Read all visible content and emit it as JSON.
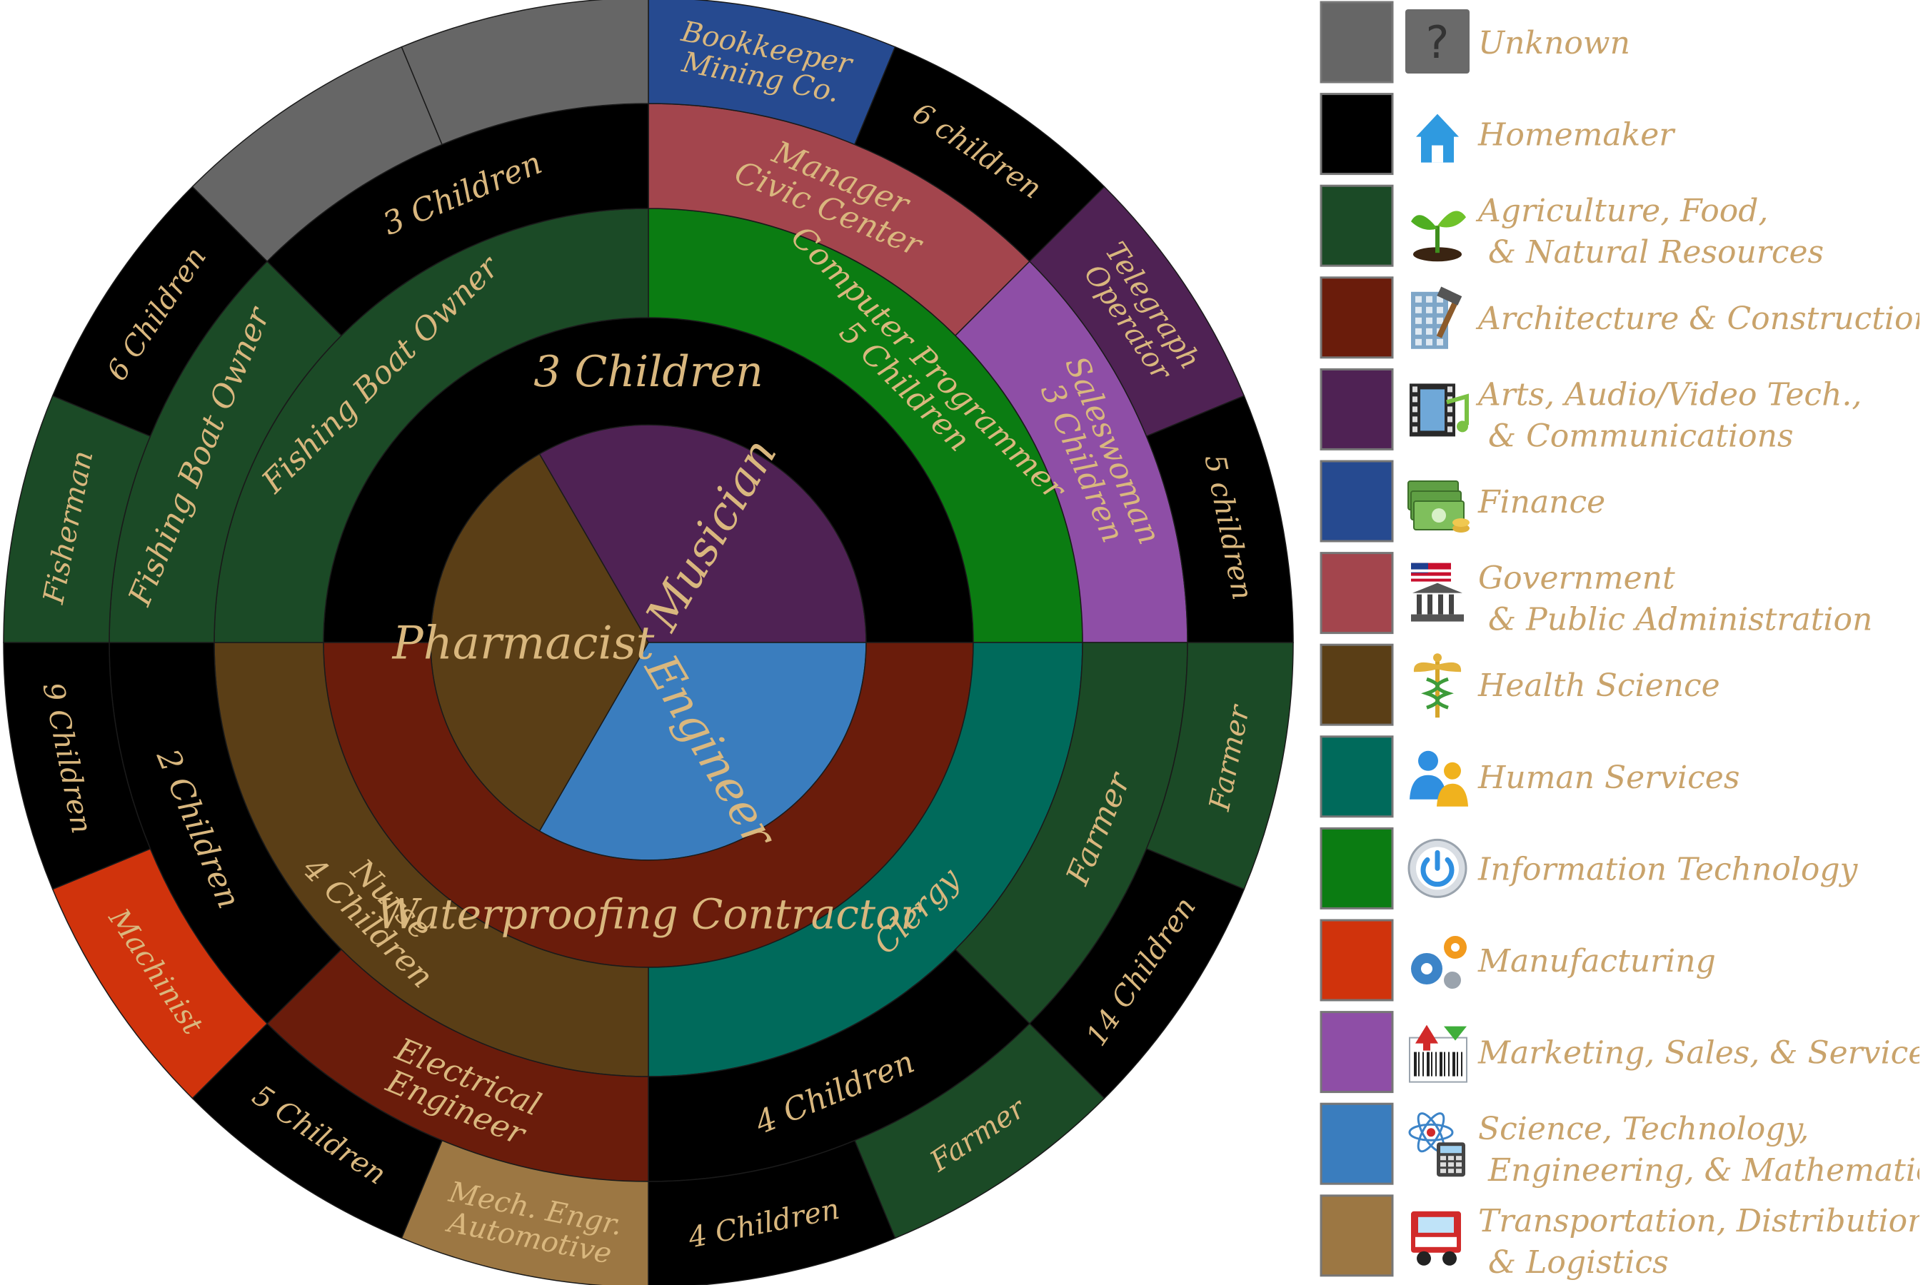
{
  "colors": {
    "label": "#d9b77e",
    "unknown": "#666666",
    "homemaker": "#000000",
    "agriculture": "#1b4a26",
    "architecture": "#6a1c0b",
    "arts": "#4f2254",
    "finance": "#264a90",
    "government": "#a3454d",
    "health": "#5a3e16",
    "human": "#006a5b",
    "it": "#0b7c12",
    "manufacturing": "#d0330c",
    "marketing": "#8e4ea6",
    "stem": "#3a7dbe",
    "transport": "#9c7743"
  },
  "chart_data": {
    "type": "sunburst",
    "rings": [
      {
        "level": 1,
        "segments": [
          {
            "label": "Musician",
            "category": "arts",
            "start": 330,
            "end": 90
          },
          {
            "label": "Engineer",
            "category": "stem",
            "start": 90,
            "end": 210
          },
          {
            "label": "Pharmacist",
            "category": "health",
            "start": 210,
            "end": 330
          }
        ]
      },
      {
        "level": 2,
        "segments": [
          {
            "label": "3 Children",
            "category": "homemaker",
            "start": 270,
            "end": 90
          },
          {
            "label": "Waterproofing Contractor",
            "category": "architecture",
            "start": 90,
            "end": 270
          }
        ]
      },
      {
        "level": 3,
        "segments": [
          {
            "label": "Computer Programmer\n5 Children",
            "category": "it",
            "start": 0,
            "end": 90
          },
          {
            "label": "Clergy",
            "category": "human",
            "start": 90,
            "end": 180
          },
          {
            "label": "Nurse\n4 Children",
            "category": "health",
            "start": 180,
            "end": 270
          },
          {
            "label": "Fishing Boat Owner",
            "category": "agriculture",
            "start": 270,
            "end": 360
          }
        ]
      },
      {
        "level": 4,
        "segments": [
          {
            "label": "Manager\nCivic Center",
            "category": "government",
            "start": 0,
            "end": 45
          },
          {
            "label": "Saleswoman\n3 Children",
            "category": "marketing",
            "start": 45,
            "end": 90
          },
          {
            "label": "Farmer",
            "category": "agriculture",
            "start": 90,
            "end": 135
          },
          {
            "label": "4 Children",
            "category": "homemaker",
            "start": 135,
            "end": 180
          },
          {
            "label": "Electrical\nEngineer",
            "category": "architecture",
            "start": 180,
            "end": 225
          },
          {
            "label": "2 Children",
            "category": "homemaker",
            "start": 225,
            "end": 270
          },
          {
            "label": "Fishing Boat Owner",
            "category": "agriculture",
            "start": 270,
            "end": 315
          },
          {
            "label": "3 Children",
            "category": "homemaker",
            "start": 315,
            "end": 360
          }
        ]
      },
      {
        "level": 5,
        "segments": [
          {
            "label": "Bookkeeper\nMining Co.",
            "category": "finance",
            "start": 0,
            "end": 22.5
          },
          {
            "label": "6 children",
            "category": "homemaker",
            "start": 22.5,
            "end": 45
          },
          {
            "label": "Telegraph\nOperator",
            "category": "arts",
            "start": 45,
            "end": 67.5
          },
          {
            "label": "5 children",
            "category": "homemaker",
            "start": 67.5,
            "end": 90
          },
          {
            "label": "Farmer",
            "category": "agriculture",
            "start": 90,
            "end": 112.5
          },
          {
            "label": "14 Children",
            "category": "homemaker",
            "start": 112.5,
            "end": 135
          },
          {
            "label": "Farmer",
            "category": "agriculture",
            "start": 135,
            "end": 157.5
          },
          {
            "label": "4 Children",
            "category": "homemaker",
            "start": 157.5,
            "end": 180
          },
          {
            "label": "Mech. Engr.\nAutomotive",
            "category": "transport",
            "start": 180,
            "end": 202.5
          },
          {
            "label": "5 Children",
            "category": "homemaker",
            "start": 202.5,
            "end": 225
          },
          {
            "label": "Machinist",
            "category": "manufacturing",
            "start": 225,
            "end": 247.5
          },
          {
            "label": "9 Children",
            "category": "homemaker",
            "start": 247.5,
            "end": 270
          },
          {
            "label": "Fisherman",
            "category": "agriculture",
            "start": 270,
            "end": 292.5
          },
          {
            "label": "6 Children",
            "category": "homemaker",
            "start": 292.5,
            "end": 315
          },
          {
            "label": "",
            "category": "unknown",
            "start": 315,
            "end": 337.5
          },
          {
            "label": "",
            "category": "unknown",
            "start": 337.5,
            "end": 360
          }
        ]
      }
    ]
  },
  "legend": {
    "items": [
      {
        "key": "unknown",
        "icon": "question-mark-icon",
        "lines": [
          "Unknown"
        ]
      },
      {
        "key": "homemaker",
        "icon": "house-icon",
        "lines": [
          "Homemaker"
        ]
      },
      {
        "key": "agriculture",
        "icon": "plant-sprout-icon",
        "lines": [
          "Agriculture, Food,",
          " & Natural Resources"
        ]
      },
      {
        "key": "architecture",
        "icon": "building-hammer-icon",
        "lines": [
          "Architecture & Construction"
        ]
      },
      {
        "key": "arts",
        "icon": "film-music-icon",
        "lines": [
          "Arts, Audio/Video Tech.,",
          " & Communications"
        ]
      },
      {
        "key": "finance",
        "icon": "money-icon",
        "lines": [
          "Finance"
        ]
      },
      {
        "key": "government",
        "icon": "capitol-flag-icon",
        "lines": [
          "Government",
          " & Public Administration"
        ]
      },
      {
        "key": "health",
        "icon": "caduceus-icon",
        "lines": [
          "Health Science"
        ]
      },
      {
        "key": "human",
        "icon": "people-icon",
        "lines": [
          "Human Services"
        ]
      },
      {
        "key": "it",
        "icon": "power-button-icon",
        "lines": [
          "Information Technology"
        ]
      },
      {
        "key": "manufacturing",
        "icon": "gears-icon",
        "lines": [
          "Manufacturing"
        ]
      },
      {
        "key": "marketing",
        "icon": "barcode-arrow-icon",
        "lines": [
          "Marketing, Sales, & Service"
        ]
      },
      {
        "key": "stem",
        "icon": "atom-calculator-icon",
        "lines": [
          "Science, Technology,",
          " Engineering, & Mathematics"
        ]
      },
      {
        "key": "transport",
        "icon": "truck-icon",
        "lines": [
          "Transportation, Distribution,",
          " & Logistics"
        ]
      }
    ]
  }
}
